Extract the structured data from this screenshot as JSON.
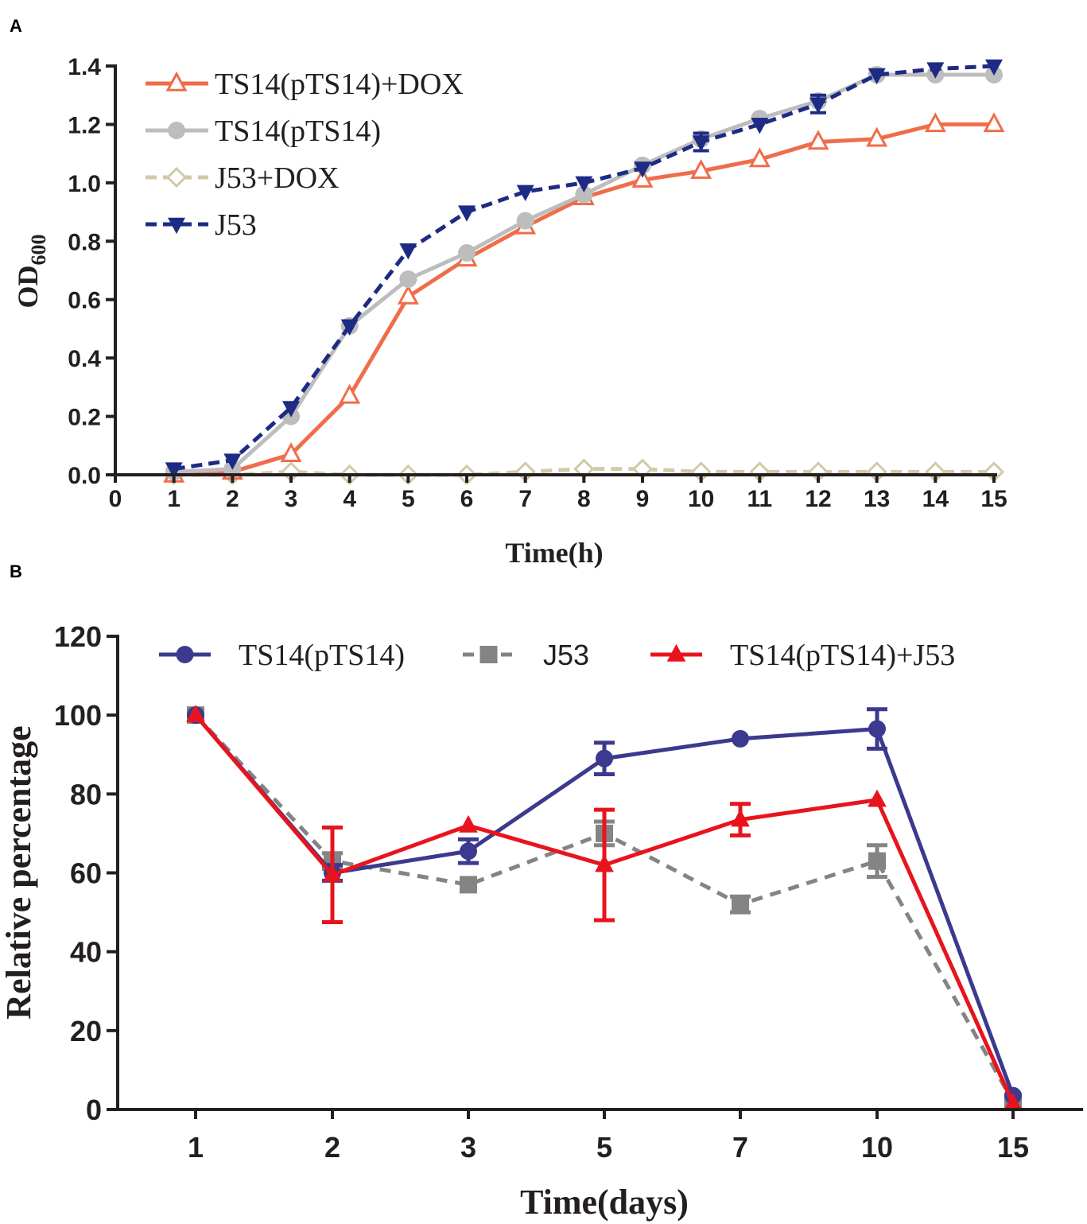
{
  "chart_data": [
    {
      "panel": "A",
      "type": "line",
      "xlabel": "Time(h)",
      "ylabel_main": "OD",
      "ylabel_sub": "600",
      "xlim": [
        0,
        15
      ],
      "ylim": [
        0,
        1.4
      ],
      "x_ticks": [
        "0",
        "1",
        "2",
        "3",
        "4",
        "5",
        "6",
        "7",
        "8",
        "9",
        "10",
        "11",
        "12",
        "13",
        "14",
        "15"
      ],
      "y_ticks": [
        "0.0",
        "0.2",
        "0.4",
        "0.6",
        "0.8",
        "1.0",
        "1.2",
        "1.4"
      ],
      "x": [
        1,
        2,
        3,
        4,
        5,
        6,
        7,
        8,
        9,
        10,
        11,
        12,
        13,
        14,
        15
      ],
      "series": [
        {
          "name": "TS14(pTS14)+DOX",
          "color": "#ef6d4a",
          "marker": "triangle-open",
          "dashed": false,
          "values": [
            0.0,
            0.01,
            0.07,
            0.27,
            0.61,
            0.74,
            0.85,
            0.95,
            1.01,
            1.04,
            1.08,
            1.14,
            1.15,
            1.2,
            1.2
          ]
        },
        {
          "name": "TS14(pTS14)",
          "color": "#bdbdbd",
          "marker": "circle",
          "dashed": false,
          "values": [
            0.01,
            0.02,
            0.2,
            0.51,
            0.67,
            0.76,
            0.87,
            0.96,
            1.06,
            1.15,
            1.22,
            1.28,
            1.37,
            1.37,
            1.37
          ]
        },
        {
          "name": "J53+DOX",
          "color": "#d2c9a8",
          "marker": "diamond-open",
          "dashed": true,
          "values": [
            0.0,
            0.0,
            0.01,
            0.0,
            0.0,
            0.0,
            0.01,
            0.02,
            0.02,
            0.01,
            0.01,
            0.01,
            0.01,
            0.01,
            0.01
          ]
        },
        {
          "name": "J53",
          "color": "#1d2b84",
          "marker": "triangle-down",
          "dashed": true,
          "values": [
            0.02,
            0.05,
            0.23,
            0.51,
            0.77,
            0.9,
            0.97,
            1.0,
            1.05,
            1.14,
            1.2,
            1.27,
            1.37,
            1.39,
            1.4
          ],
          "errors": [
            0,
            0,
            0,
            0,
            0,
            0,
            0,
            0,
            0,
            0.03,
            0,
            0.03,
            0,
            0,
            0
          ]
        }
      ]
    },
    {
      "panel": "B",
      "type": "line",
      "xlabel": "Time(days)",
      "ylabel": "Relative percentage",
      "categories": [
        "1",
        "2",
        "3",
        "5",
        "7",
        "10",
        "15"
      ],
      "ylim": [
        0,
        120
      ],
      "y_ticks": [
        "0",
        "20",
        "40",
        "60",
        "80",
        "100",
        "120"
      ],
      "series": [
        {
          "name": "TS14(pTS14)",
          "color": "#3b3a8e",
          "marker": "circle",
          "dashed": false,
          "values": [
            100,
            60,
            65.5,
            89,
            94,
            96.5,
            3.5
          ],
          "errors": [
            0,
            2,
            3,
            4,
            0,
            5,
            0
          ]
        },
        {
          "name": "J53",
          "color": "#848484",
          "marker": "square",
          "dashed": true,
          "values": [
            100,
            63,
            57,
            70,
            52,
            63,
            2
          ],
          "errors": [
            0,
            2,
            0,
            3,
            2,
            4,
            0
          ]
        },
        {
          "name": "TS14(pTS14)+J53",
          "color": "#e8141d",
          "marker": "triangle",
          "dashed": false,
          "values": [
            100,
            59.5,
            72,
            62,
            73.5,
            78.5,
            1.5
          ],
          "errors": [
            0,
            12,
            0,
            14,
            4,
            0,
            0
          ]
        }
      ]
    }
  ]
}
